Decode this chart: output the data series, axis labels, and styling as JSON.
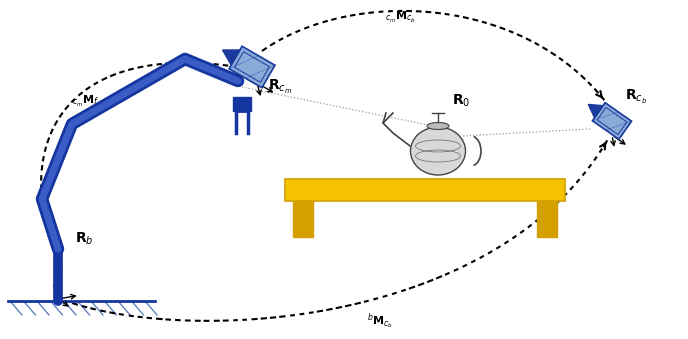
{
  "figsize": [
    6.88,
    3.39
  ],
  "dpi": 100,
  "bg_color": "#ffffff",
  "blue_robot": "#1535a0",
  "blue_robot_edge": "#0d2070",
  "blue_cam_light": "#8aaad8",
  "blue_cam_dark": "#1a3a9e",
  "blue_cam_mid": "#4d6db5",
  "yellow_table": "#f5c200",
  "yellow_table_dark": "#d4a000",
  "gray_ground": "#5577bb",
  "xlim": [
    0,
    6.88
  ],
  "ylim": [
    0,
    3.39
  ]
}
